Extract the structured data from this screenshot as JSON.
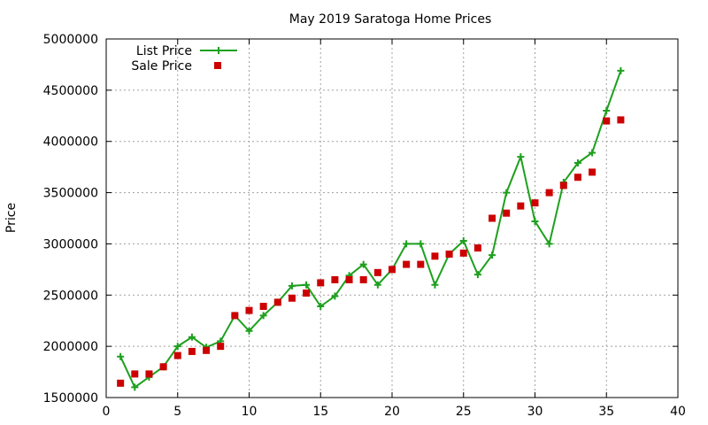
{
  "chart_data": {
    "type": "line",
    "title": "May 2019 Saratoga Home Prices",
    "xlabel": "",
    "ylabel": "Price",
    "xlim": [
      0,
      40
    ],
    "ylim": [
      1500000,
      5000000
    ],
    "xticks": [
      "0",
      "5",
      "10",
      "15",
      "20",
      "25",
      "30",
      "35",
      "40"
    ],
    "yticks": [
      "1500000",
      "2000000",
      "2500000",
      "3000000",
      "3500000",
      "4000000",
      "4500000",
      "5000000"
    ],
    "grid": true,
    "legend_position": "top-left",
    "series": [
      {
        "name": "List Price",
        "style": "line-with-plus-markers",
        "color": "#1ea01e",
        "points": [
          [
            1,
            1900000
          ],
          [
            2,
            1600000
          ],
          [
            3,
            1700000
          ],
          [
            4,
            1800000
          ],
          [
            5,
            2000000
          ],
          [
            6,
            2090000
          ],
          [
            7,
            1990000
          ],
          [
            8,
            2050000
          ],
          [
            9,
            2300000
          ],
          [
            10,
            2150000
          ],
          [
            11,
            2300000
          ],
          [
            12,
            2430000
          ],
          [
            13,
            2590000
          ],
          [
            14,
            2600000
          ],
          [
            15,
            2390000
          ],
          [
            16,
            2490000
          ],
          [
            17,
            2690000
          ],
          [
            18,
            2800000
          ],
          [
            19,
            2600000
          ],
          [
            20,
            2750000
          ],
          [
            21,
            3000000
          ],
          [
            22,
            3000000
          ],
          [
            23,
            2600000
          ],
          [
            24,
            2900000
          ],
          [
            25,
            3030000
          ],
          [
            26,
            2700000
          ],
          [
            27,
            2890000
          ],
          [
            28,
            3500000
          ],
          [
            29,
            3850000
          ],
          [
            30,
            3220000
          ],
          [
            31,
            3000000
          ],
          [
            32,
            3600000
          ],
          [
            33,
            3790000
          ],
          [
            34,
            3890000
          ],
          [
            35,
            4300000
          ],
          [
            36,
            4690000
          ]
        ]
      },
      {
        "name": "Sale Price",
        "style": "square-markers",
        "color": "#cc0000",
        "points": [
          [
            1,
            1640000
          ],
          [
            2,
            1730000
          ],
          [
            3,
            1730000
          ],
          [
            4,
            1800000
          ],
          [
            5,
            1910000
          ],
          [
            6,
            1950000
          ],
          [
            7,
            1960000
          ],
          [
            8,
            2000000
          ],
          [
            9,
            2300000
          ],
          [
            10,
            2350000
          ],
          [
            11,
            2390000
          ],
          [
            12,
            2430000
          ],
          [
            13,
            2470000
          ],
          [
            14,
            2520000
          ],
          [
            15,
            2620000
          ],
          [
            16,
            2650000
          ],
          [
            17,
            2650000
          ],
          [
            18,
            2650000
          ],
          [
            19,
            2720000
          ],
          [
            20,
            2750000
          ],
          [
            21,
            2800000
          ],
          [
            22,
            2800000
          ],
          [
            23,
            2880000
          ],
          [
            24,
            2900000
          ],
          [
            25,
            2910000
          ],
          [
            26,
            2960000
          ],
          [
            27,
            3250000
          ],
          [
            28,
            3300000
          ],
          [
            29,
            3370000
          ],
          [
            30,
            3400000
          ],
          [
            31,
            3500000
          ],
          [
            32,
            3570000
          ],
          [
            33,
            3650000
          ],
          [
            34,
            3700000
          ],
          [
            35,
            4200000
          ],
          [
            36,
            4210000
          ]
        ]
      }
    ]
  }
}
